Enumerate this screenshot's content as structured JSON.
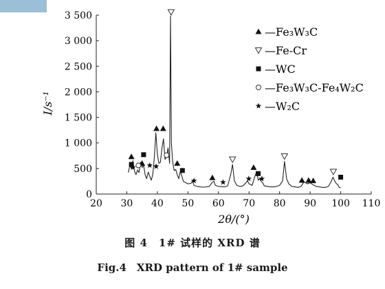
{
  "figure": {
    "caption_cn": "图 4　1# 试样的 XRD 谱",
    "caption_en": "Fig.4　XRD pattern of 1# sample"
  },
  "chart_data": {
    "type": "line",
    "xlabel": "2θ/(°)",
    "ylabel": "I/s⁻¹",
    "xlim": [
      20,
      110
    ],
    "ylim": [
      0,
      3500
    ],
    "xticks": [
      20,
      30,
      40,
      50,
      60,
      70,
      80,
      90,
      100,
      110
    ],
    "yticks": [
      0,
      500,
      1000,
      1500,
      2000,
      2500,
      3000,
      3500
    ],
    "ytick_labels": [
      "0",
      "500",
      "1 000",
      "1 500",
      "2 000",
      "2 500",
      "3 000",
      "3 500"
    ],
    "grid": false,
    "legend_position": "top-right",
    "line_color": "#222222",
    "pattern": {
      "x": [
        30.5,
        31.0,
        31.5,
        32.0,
        32.5,
        33.0,
        33.5,
        34.0,
        34.5,
        35.0,
        35.5,
        36.0,
        36.5,
        37.0,
        37.5,
        38.0,
        38.5,
        39.0,
        39.5,
        40.0,
        40.5,
        41.0,
        41.5,
        42.0,
        42.5,
        43.0,
        43.5,
        44.0,
        44.3,
        44.6,
        45.0,
        45.5,
        46.0,
        46.5,
        47.0,
        47.5,
        48.0,
        48.5,
        49.0,
        50.0,
        51.0,
        51.5,
        52.0,
        53.0,
        54.0,
        55.0,
        56.0,
        57.0,
        58.0,
        58.5,
        59.0,
        60.0,
        61.0,
        62.0,
        63.0,
        64.0,
        64.6,
        65.2,
        66.0,
        67.0,
        68.0,
        69.0,
        69.5,
        70.0,
        71.0,
        72.0,
        72.5,
        73.0,
        73.5,
        74.0,
        74.5,
        75.0,
        76.0,
        77.0,
        78.0,
        79.0,
        80.0,
        81.0,
        81.6,
        82.3,
        83.0,
        84.0,
        85.0,
        86.0,
        87.0,
        88.0,
        89.0,
        90.0,
        91.0,
        92.0,
        93.0,
        94.0,
        95.0,
        96.0,
        97.0,
        97.5,
        98.0,
        98.6,
        99.0,
        99.5,
        100.0
      ],
      "y": [
        420,
        560,
        500,
        650,
        450,
        380,
        470,
        420,
        620,
        520,
        560,
        380,
        300,
        430,
        350,
        270,
        380,
        700,
        1200,
        780,
        600,
        620,
        900,
        1080,
        680,
        720,
        900,
        600,
        3480,
        1000,
        640,
        460,
        480,
        380,
        300,
        440,
        360,
        250,
        230,
        200,
        210,
        260,
        170,
        150,
        140,
        135,
        140,
        150,
        230,
        250,
        170,
        150,
        145,
        140,
        160,
        380,
        580,
        260,
        170,
        150,
        160,
        220,
        260,
        200,
        170,
        360,
        440,
        270,
        300,
        250,
        220,
        160,
        150,
        140,
        140,
        150,
        170,
        260,
        640,
        300,
        200,
        150,
        140,
        130,
        150,
        240,
        200,
        220,
        180,
        150,
        140,
        130,
        130,
        150,
        260,
        330,
        260,
        200,
        190,
        130,
        120
      ]
    },
    "legend": [
      {
        "marker": "triangle-up",
        "label": "—Fe₃W₃C"
      },
      {
        "marker": "triangle-down-open",
        "label": "—Fe-Cr"
      },
      {
        "marker": "square",
        "label": "—WC"
      },
      {
        "marker": "circle-open",
        "label": "—Fe₃W₃C-Fe₄W₂C"
      },
      {
        "marker": "star",
        "label": "—W₂C"
      }
    ],
    "phase_markers": {
      "Fe3W3C": [
        [
          31.5,
          730
        ],
        [
          35.0,
          600
        ],
        [
          39.7,
          1280
        ],
        [
          41.9,
          1280
        ],
        [
          46.5,
          600
        ],
        [
          58.0,
          320
        ],
        [
          71.5,
          520
        ],
        [
          87.3,
          270
        ],
        [
          89.5,
          270
        ],
        [
          91.0,
          260
        ]
      ],
      "Fe-Cr": [
        [
          44.5,
          3560
        ],
        [
          64.6,
          680
        ],
        [
          81.6,
          740
        ],
        [
          97.6,
          440
        ]
      ],
      "WC": [
        [
          31.5,
          580
        ],
        [
          35.5,
          770
        ],
        [
          48.2,
          460
        ],
        [
          73.0,
          400
        ],
        [
          100.0,
          330
        ]
      ],
      "Fe3W3C-Fe4W2C": [
        [
          33.8,
          560
        ],
        [
          43.0,
          760
        ]
      ],
      "W2C": [
        [
          32.0,
          520
        ],
        [
          37.5,
          560
        ],
        [
          39.6,
          540
        ],
        [
          52.0,
          260
        ],
        [
          61.5,
          230
        ],
        [
          69.9,
          300
        ],
        [
          74.2,
          300
        ]
      ]
    }
  }
}
